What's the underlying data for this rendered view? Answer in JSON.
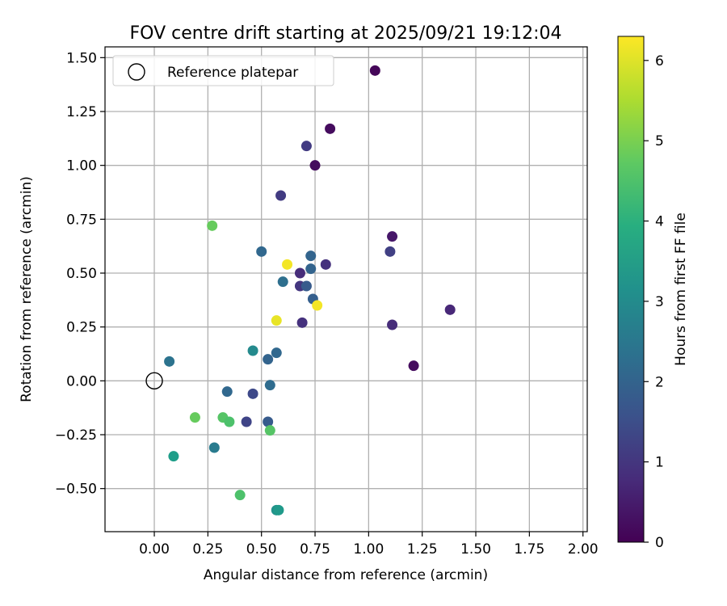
{
  "chart_data": {
    "type": "scatter",
    "title": "FOV centre drift starting at 2025/09/21 19:12:04",
    "xlabel": "Angular distance from reference (arcmin)",
    "ylabel": "Rotation from reference (arcmin)",
    "xlim": [
      -0.23,
      2.02
    ],
    "ylim": [
      -0.7,
      1.55
    ],
    "xticks": [
      0.0,
      0.25,
      0.5,
      0.75,
      1.0,
      1.25,
      1.5,
      1.75,
      2.0
    ],
    "xtick_labels": [
      "0.00",
      "0.25",
      "0.50",
      "0.75",
      "1.00",
      "1.25",
      "1.50",
      "1.75",
      "2.00"
    ],
    "yticks": [
      -0.5,
      -0.25,
      0.0,
      0.25,
      0.5,
      0.75,
      1.0,
      1.25,
      1.5
    ],
    "ytick_labels": [
      "−0.50",
      "−0.25",
      "0.00",
      "0.25",
      "0.50",
      "0.75",
      "1.00",
      "1.25",
      "1.50"
    ],
    "grid": true,
    "legend": {
      "position": "top-left",
      "label": "Reference platepar"
    },
    "reference_point": {
      "x": 0.0,
      "y": 0.0,
      "label": "Reference platepar"
    },
    "colorbar": {
      "label": "Hours from first FF file",
      "colormap": "viridis",
      "range": [
        0,
        6.3
      ],
      "ticks": [
        0,
        1,
        2,
        3,
        4,
        5,
        6
      ],
      "tick_labels": [
        "0",
        "1",
        "2",
        "3",
        "4",
        "5",
        "6"
      ]
    },
    "points": [
      {
        "x": 1.03,
        "y": 1.44,
        "h": 0.1
      },
      {
        "x": 0.82,
        "y": 1.17,
        "h": 0.2
      },
      {
        "x": 0.71,
        "y": 1.09,
        "h": 1.1
      },
      {
        "x": 0.75,
        "y": 1.0,
        "h": 0.2
      },
      {
        "x": 0.59,
        "y": 0.86,
        "h": 1.1
      },
      {
        "x": 1.11,
        "y": 0.67,
        "h": 0.4
      },
      {
        "x": 0.27,
        "y": 0.72,
        "h": 4.8
      },
      {
        "x": 0.5,
        "y": 0.6,
        "h": 2.1
      },
      {
        "x": 1.1,
        "y": 0.6,
        "h": 1.2
      },
      {
        "x": 0.73,
        "y": 0.58,
        "h": 2.0
      },
      {
        "x": 0.8,
        "y": 0.54,
        "h": 0.9
      },
      {
        "x": 0.62,
        "y": 0.54,
        "h": 6.2
      },
      {
        "x": 0.73,
        "y": 0.52,
        "h": 2.0
      },
      {
        "x": 0.68,
        "y": 0.5,
        "h": 0.8
      },
      {
        "x": 0.6,
        "y": 0.46,
        "h": 2.3
      },
      {
        "x": 0.68,
        "y": 0.44,
        "h": 1.0
      },
      {
        "x": 0.71,
        "y": 0.44,
        "h": 1.8
      },
      {
        "x": 0.74,
        "y": 0.38,
        "h": 1.9
      },
      {
        "x": 0.76,
        "y": 0.35,
        "h": 6.2
      },
      {
        "x": 1.38,
        "y": 0.33,
        "h": 0.7
      },
      {
        "x": 0.57,
        "y": 0.28,
        "h": 6.1
      },
      {
        "x": 0.69,
        "y": 0.27,
        "h": 0.9
      },
      {
        "x": 1.11,
        "y": 0.26,
        "h": 0.8
      },
      {
        "x": 0.46,
        "y": 0.14,
        "h": 3.0
      },
      {
        "x": 0.57,
        "y": 0.13,
        "h": 2.1
      },
      {
        "x": 0.53,
        "y": 0.1,
        "h": 2.0
      },
      {
        "x": 0.07,
        "y": 0.09,
        "h": 2.4
      },
      {
        "x": 1.21,
        "y": 0.07,
        "h": 0.2
      },
      {
        "x": 0.54,
        "y": -0.02,
        "h": 2.2
      },
      {
        "x": 0.34,
        "y": -0.05,
        "h": 2.1
      },
      {
        "x": 0.46,
        "y": -0.06,
        "h": 1.4
      },
      {
        "x": 0.19,
        "y": -0.17,
        "h": 4.8
      },
      {
        "x": 0.32,
        "y": -0.17,
        "h": 4.6
      },
      {
        "x": 0.35,
        "y": -0.19,
        "h": 4.5
      },
      {
        "x": 0.43,
        "y": -0.19,
        "h": 1.3
      },
      {
        "x": 0.53,
        "y": -0.19,
        "h": 1.8
      },
      {
        "x": 0.54,
        "y": -0.23,
        "h": 4.6
      },
      {
        "x": 0.28,
        "y": -0.31,
        "h": 2.6
      },
      {
        "x": 0.09,
        "y": -0.35,
        "h": 3.5
      },
      {
        "x": 0.4,
        "y": -0.53,
        "h": 4.5
      },
      {
        "x": 0.57,
        "y": -0.6,
        "h": 3.2
      },
      {
        "x": 0.58,
        "y": -0.6,
        "h": 3.4
      }
    ]
  }
}
